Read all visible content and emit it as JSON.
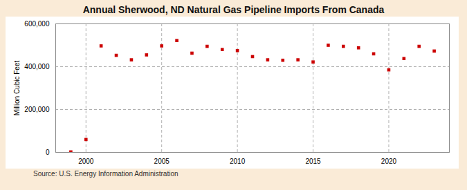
{
  "chart_data": {
    "type": "scatter",
    "title": "Annual Sherwood, ND Natural Gas Pipeline Imports From Canada",
    "ylabel": "Million Cubic Feet",
    "source": "Source: U.S. Energy Information Administration",
    "x": [
      1999,
      2000,
      2001,
      2002,
      2003,
      2004,
      2005,
      2006,
      2007,
      2008,
      2009,
      2010,
      2011,
      2012,
      2013,
      2014,
      2015,
      2016,
      2017,
      2018,
      2019,
      2020,
      2021,
      2022,
      2023
    ],
    "values": [
      2000,
      60000,
      497000,
      453000,
      432000,
      455000,
      497000,
      522000,
      463000,
      495000,
      480000,
      475000,
      447000,
      432000,
      430000,
      432000,
      422000,
      500000,
      495000,
      488000,
      460000,
      385000,
      438000,
      495000,
      473000
    ],
    "color": "#cc0000",
    "marker": "square",
    "xlim": [
      1998,
      2024
    ],
    "ylim": [
      0,
      600000
    ],
    "xticks": [
      2000,
      2005,
      2010,
      2015,
      2020
    ],
    "yticks": [
      0,
      {
        "value": 200000,
        "label": "200,000"
      },
      {
        "value": 400000,
        "label": "400,000"
      },
      {
        "value": 600000,
        "label": "600,000"
      }
    ],
    "grid": true
  }
}
